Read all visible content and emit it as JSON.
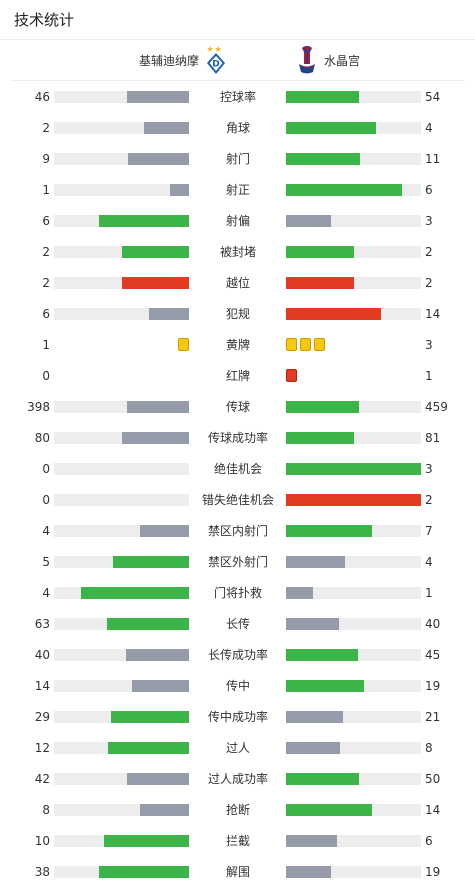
{
  "title": "技术统计",
  "home_team": {
    "name": "基辅迪纳摩",
    "logo_icon": "dynamo-kyiv-logo-icon"
  },
  "away_team": {
    "name": "水晶宫",
    "logo_icon": "crystal-palace-logo-icon"
  },
  "colors": {
    "green": "#3cb44a",
    "gray": "#959ba9",
    "red": "#e23b22",
    "track": "#ededed",
    "yellow_card": "#f6c90e",
    "red_card": "#e53b24"
  },
  "stats": [
    {
      "label": "控球率",
      "home": "46",
      "away": "54",
      "home_frac": 0.46,
      "away_frac": 0.54,
      "home_color": "gray",
      "away_color": "green"
    },
    {
      "label": "角球",
      "home": "2",
      "away": "4",
      "home_frac": 0.33,
      "away_frac": 0.67,
      "home_color": "gray",
      "away_color": "green"
    },
    {
      "label": "射门",
      "home": "9",
      "away": "11",
      "home_frac": 0.45,
      "away_frac": 0.55,
      "home_color": "gray",
      "away_color": "green"
    },
    {
      "label": "射正",
      "home": "1",
      "away": "6",
      "home_frac": 0.14,
      "away_frac": 0.86,
      "home_color": "gray",
      "away_color": "green"
    },
    {
      "label": "射偏",
      "home": "6",
      "away": "3",
      "home_frac": 0.67,
      "away_frac": 0.33,
      "home_color": "green",
      "away_color": "gray"
    },
    {
      "label": "被封堵",
      "home": "2",
      "away": "2",
      "home_frac": 0.5,
      "away_frac": 0.5,
      "home_color": "green",
      "away_color": "green"
    },
    {
      "label": "越位",
      "home": "2",
      "away": "2",
      "home_frac": 0.5,
      "away_frac": 0.5,
      "home_color": "red",
      "away_color": "red"
    },
    {
      "label": "犯规",
      "home": "6",
      "away": "14",
      "home_frac": 0.3,
      "away_frac": 0.7,
      "home_color": "gray",
      "away_color": "red"
    },
    {
      "label": "黄牌",
      "home": "1",
      "away": "3",
      "home_cards": 1,
      "away_cards": 3,
      "card_type": "yellow"
    },
    {
      "label": "红牌",
      "home": "0",
      "away": "1",
      "home_cards": 0,
      "away_cards": 1,
      "card_type": "red"
    },
    {
      "label": "传球",
      "home": "398",
      "away": "459",
      "home_frac": 0.46,
      "away_frac": 0.54,
      "home_color": "gray",
      "away_color": "green"
    },
    {
      "label": "传球成功率",
      "home": "80",
      "away": "81",
      "home_frac": 0.5,
      "away_frac": 0.5,
      "home_color": "gray",
      "away_color": "green"
    },
    {
      "label": "绝佳机会",
      "home": "0",
      "away": "3",
      "home_frac": 0,
      "away_frac": 1,
      "home_color": "gray",
      "away_color": "green"
    },
    {
      "label": "错失绝佳机会",
      "home": "0",
      "away": "2",
      "home_frac": 0,
      "away_frac": 1,
      "home_color": "gray",
      "away_color": "red"
    },
    {
      "label": "禁区内射门",
      "home": "4",
      "away": "7",
      "home_frac": 0.36,
      "away_frac": 0.64,
      "home_color": "gray",
      "away_color": "green"
    },
    {
      "label": "禁区外射门",
      "home": "5",
      "away": "4",
      "home_frac": 0.56,
      "away_frac": 0.44,
      "home_color": "green",
      "away_color": "gray"
    },
    {
      "label": "门将扑救",
      "home": "4",
      "away": "1",
      "home_frac": 0.8,
      "away_frac": 0.2,
      "home_color": "green",
      "away_color": "gray"
    },
    {
      "label": "长传",
      "home": "63",
      "away": "40",
      "home_frac": 0.61,
      "away_frac": 0.39,
      "home_color": "green",
      "away_color": "gray"
    },
    {
      "label": "长传成功率",
      "home": "40",
      "away": "45",
      "home_frac": 0.47,
      "away_frac": 0.53,
      "home_color": "gray",
      "away_color": "green"
    },
    {
      "label": "传中",
      "home": "14",
      "away": "19",
      "home_frac": 0.42,
      "away_frac": 0.58,
      "home_color": "gray",
      "away_color": "green"
    },
    {
      "label": "传中成功率",
      "home": "29",
      "away": "21",
      "home_frac": 0.58,
      "away_frac": 0.42,
      "home_color": "green",
      "away_color": "gray"
    },
    {
      "label": "过人",
      "home": "12",
      "away": "8",
      "home_frac": 0.6,
      "away_frac": 0.4,
      "home_color": "green",
      "away_color": "gray"
    },
    {
      "label": "过人成功率",
      "home": "42",
      "away": "50",
      "home_frac": 0.46,
      "away_frac": 0.54,
      "home_color": "gray",
      "away_color": "green"
    },
    {
      "label": "抢断",
      "home": "8",
      "away": "14",
      "home_frac": 0.36,
      "away_frac": 0.64,
      "home_color": "gray",
      "away_color": "green"
    },
    {
      "label": "拦截",
      "home": "10",
      "away": "6",
      "home_frac": 0.63,
      "away_frac": 0.38,
      "home_color": "green",
      "away_color": "gray"
    },
    {
      "label": "解围",
      "home": "38",
      "away": "19",
      "home_frac": 0.67,
      "away_frac": 0.33,
      "home_color": "green",
      "away_color": "gray"
    }
  ]
}
